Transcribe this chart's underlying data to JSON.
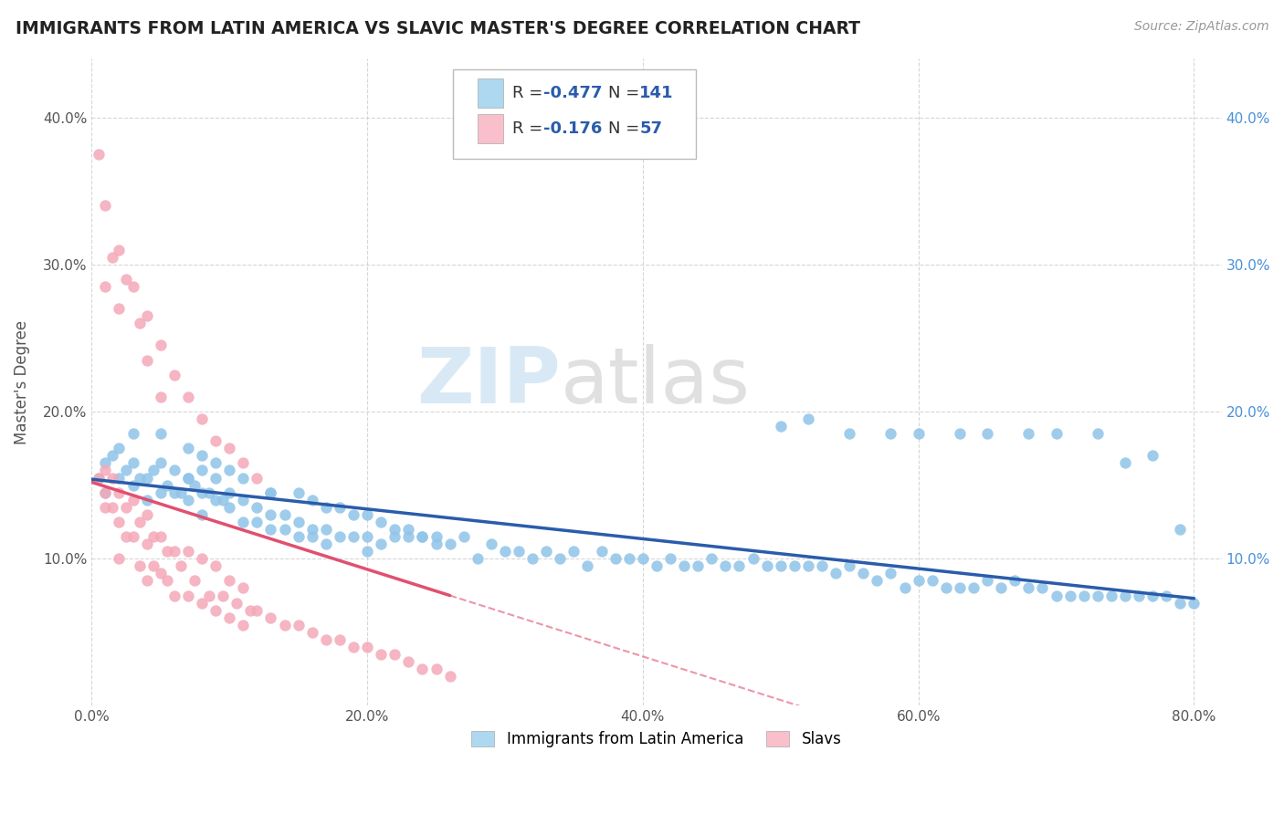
{
  "title": "IMMIGRANTS FROM LATIN AMERICA VS SLAVIC MASTER'S DEGREE CORRELATION CHART",
  "source": "Source: ZipAtlas.com",
  "ylabel": "Master's Degree",
  "xlim": [
    0.0,
    0.82
  ],
  "ylim": [
    0.0,
    0.44
  ],
  "xticks": [
    0.0,
    0.2,
    0.4,
    0.6,
    0.8
  ],
  "yticks": [
    0.1,
    0.2,
    0.3,
    0.4
  ],
  "xtick_labels": [
    "0.0%",
    "20.0%",
    "40.0%",
    "60.0%",
    "80.0%"
  ],
  "ytick_labels": [
    "10.0%",
    "20.0%",
    "30.0%",
    "40.0%"
  ],
  "blue_color": "#90c4e8",
  "pink_color": "#f4a8b8",
  "blue_line_color": "#2a5caa",
  "pink_line_color": "#e05070",
  "watermark_zip": "ZIP",
  "watermark_atlas": "atlas",
  "blue_x": [
    0.005,
    0.01,
    0.01,
    0.015,
    0.02,
    0.02,
    0.025,
    0.03,
    0.03,
    0.035,
    0.04,
    0.04,
    0.045,
    0.05,
    0.05,
    0.055,
    0.06,
    0.06,
    0.065,
    0.07,
    0.07,
    0.075,
    0.08,
    0.08,
    0.085,
    0.09,
    0.09,
    0.095,
    0.1,
    0.1,
    0.11,
    0.11,
    0.12,
    0.12,
    0.13,
    0.13,
    0.14,
    0.14,
    0.15,
    0.15,
    0.16,
    0.16,
    0.17,
    0.17,
    0.18,
    0.19,
    0.2,
    0.2,
    0.21,
    0.22,
    0.23,
    0.24,
    0.25,
    0.26,
    0.27,
    0.28,
    0.29,
    0.3,
    0.31,
    0.32,
    0.33,
    0.34,
    0.35,
    0.36,
    0.37,
    0.38,
    0.39,
    0.4,
    0.41,
    0.42,
    0.43,
    0.44,
    0.45,
    0.46,
    0.47,
    0.48,
    0.49,
    0.5,
    0.51,
    0.52,
    0.53,
    0.54,
    0.55,
    0.56,
    0.57,
    0.58,
    0.59,
    0.6,
    0.61,
    0.62,
    0.63,
    0.64,
    0.65,
    0.66,
    0.67,
    0.68,
    0.69,
    0.7,
    0.71,
    0.72,
    0.73,
    0.74,
    0.75,
    0.76,
    0.77,
    0.78,
    0.79,
    0.8,
    0.5,
    0.52,
    0.55,
    0.58,
    0.6,
    0.63,
    0.65,
    0.68,
    0.7,
    0.73,
    0.75,
    0.77,
    0.79,
    0.03,
    0.05,
    0.07,
    0.08,
    0.09,
    0.1,
    0.11,
    0.13,
    0.15,
    0.16,
    0.17,
    0.18,
    0.19,
    0.2,
    0.21,
    0.22,
    0.23,
    0.24,
    0.25,
    0.07,
    0.13,
    0.08
  ],
  "blue_y": [
    0.155,
    0.165,
    0.145,
    0.17,
    0.155,
    0.175,
    0.16,
    0.15,
    0.165,
    0.155,
    0.155,
    0.14,
    0.16,
    0.145,
    0.165,
    0.15,
    0.145,
    0.16,
    0.145,
    0.155,
    0.14,
    0.15,
    0.145,
    0.16,
    0.145,
    0.14,
    0.155,
    0.14,
    0.145,
    0.135,
    0.14,
    0.125,
    0.135,
    0.125,
    0.13,
    0.12,
    0.13,
    0.12,
    0.125,
    0.115,
    0.12,
    0.115,
    0.12,
    0.11,
    0.115,
    0.115,
    0.115,
    0.105,
    0.11,
    0.115,
    0.12,
    0.115,
    0.115,
    0.11,
    0.115,
    0.1,
    0.11,
    0.105,
    0.105,
    0.1,
    0.105,
    0.1,
    0.105,
    0.095,
    0.105,
    0.1,
    0.1,
    0.1,
    0.095,
    0.1,
    0.095,
    0.095,
    0.1,
    0.095,
    0.095,
    0.1,
    0.095,
    0.095,
    0.095,
    0.095,
    0.095,
    0.09,
    0.095,
    0.09,
    0.085,
    0.09,
    0.08,
    0.085,
    0.085,
    0.08,
    0.08,
    0.08,
    0.085,
    0.08,
    0.085,
    0.08,
    0.08,
    0.075,
    0.075,
    0.075,
    0.075,
    0.075,
    0.075,
    0.075,
    0.075,
    0.075,
    0.07,
    0.07,
    0.19,
    0.195,
    0.185,
    0.185,
    0.185,
    0.185,
    0.185,
    0.185,
    0.185,
    0.185,
    0.165,
    0.17,
    0.12,
    0.185,
    0.185,
    0.175,
    0.17,
    0.165,
    0.16,
    0.155,
    0.145,
    0.145,
    0.14,
    0.135,
    0.135,
    0.13,
    0.13,
    0.125,
    0.12,
    0.115,
    0.115,
    0.11,
    0.155,
    0.145,
    0.13
  ],
  "pink_x": [
    0.005,
    0.01,
    0.01,
    0.01,
    0.015,
    0.015,
    0.02,
    0.02,
    0.02,
    0.025,
    0.025,
    0.03,
    0.03,
    0.035,
    0.035,
    0.04,
    0.04,
    0.04,
    0.045,
    0.045,
    0.05,
    0.05,
    0.055,
    0.055,
    0.06,
    0.06,
    0.065,
    0.07,
    0.07,
    0.075,
    0.08,
    0.08,
    0.085,
    0.09,
    0.09,
    0.095,
    0.1,
    0.1,
    0.105,
    0.11,
    0.11,
    0.115,
    0.12,
    0.13,
    0.14,
    0.15,
    0.16,
    0.17,
    0.18,
    0.19,
    0.2,
    0.21,
    0.22,
    0.23,
    0.24,
    0.25,
    0.26
  ],
  "pink_y": [
    0.155,
    0.16,
    0.145,
    0.135,
    0.155,
    0.135,
    0.145,
    0.125,
    0.1,
    0.135,
    0.115,
    0.14,
    0.115,
    0.125,
    0.095,
    0.13,
    0.11,
    0.085,
    0.115,
    0.095,
    0.115,
    0.09,
    0.105,
    0.085,
    0.105,
    0.075,
    0.095,
    0.105,
    0.075,
    0.085,
    0.1,
    0.07,
    0.075,
    0.095,
    0.065,
    0.075,
    0.085,
    0.06,
    0.07,
    0.08,
    0.055,
    0.065,
    0.065,
    0.06,
    0.055,
    0.055,
    0.05,
    0.045,
    0.045,
    0.04,
    0.04,
    0.035,
    0.035,
    0.03,
    0.025,
    0.025,
    0.02
  ],
  "pink_outlier_x": [
    0.005,
    0.01,
    0.01,
    0.015,
    0.02,
    0.02,
    0.025,
    0.03,
    0.035,
    0.04,
    0.04,
    0.05,
    0.05,
    0.06,
    0.07,
    0.08,
    0.09,
    0.1,
    0.11,
    0.12
  ],
  "pink_outlier_y": [
    0.375,
    0.34,
    0.285,
    0.305,
    0.31,
    0.27,
    0.29,
    0.285,
    0.26,
    0.265,
    0.235,
    0.245,
    0.21,
    0.225,
    0.21,
    0.195,
    0.18,
    0.175,
    0.165,
    0.155
  ]
}
